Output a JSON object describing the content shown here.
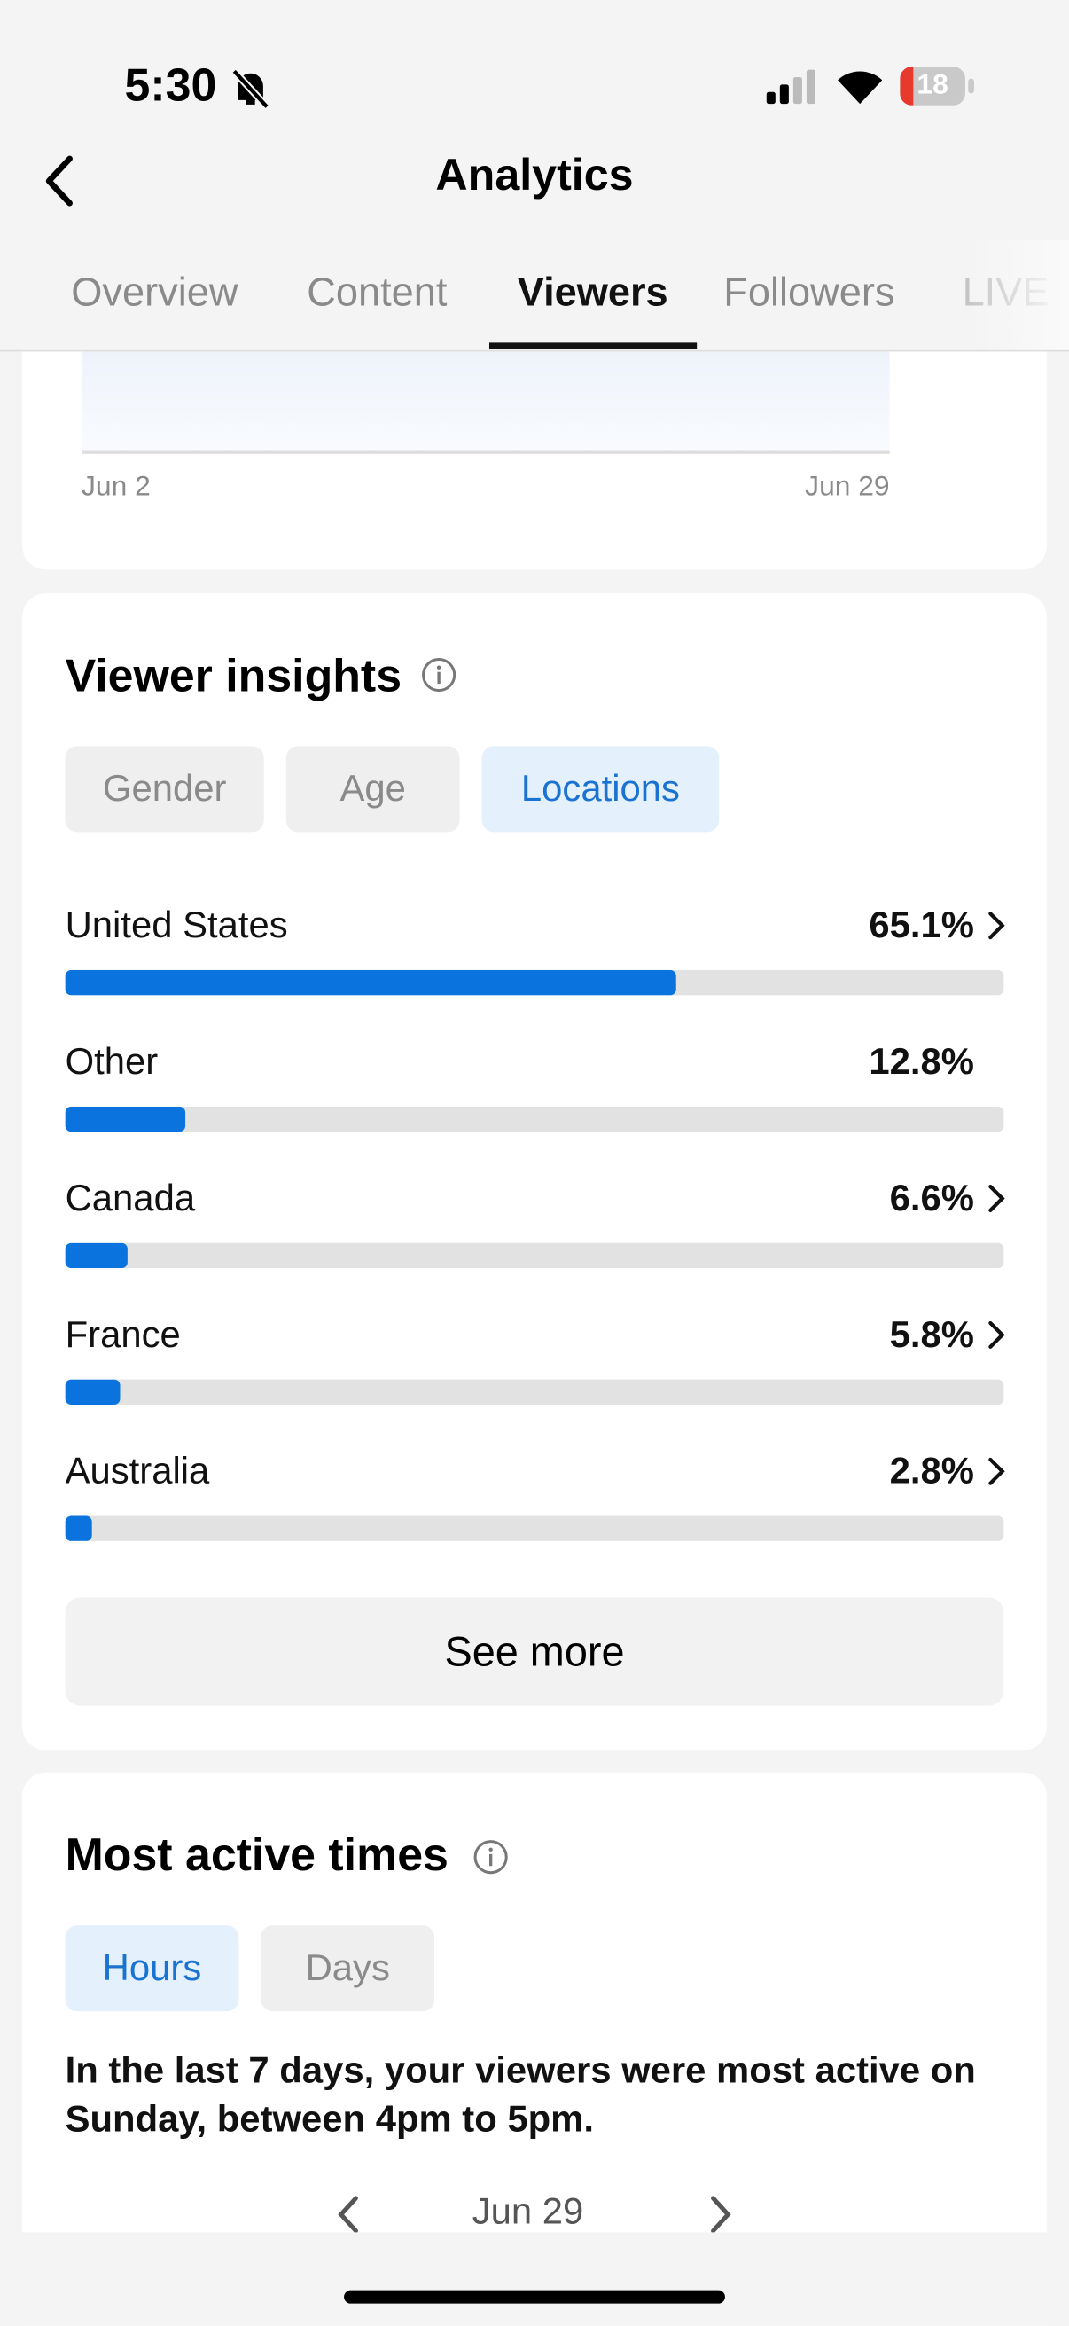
{
  "status_bar": {
    "time": "5:30",
    "battery": "18"
  },
  "header": {
    "title": "Analytics"
  },
  "tabs": [
    {
      "label": "Overview",
      "active": false
    },
    {
      "label": "Content",
      "active": false
    },
    {
      "label": "Viewers",
      "active": true
    },
    {
      "label": "Followers",
      "active": false
    },
    {
      "label": "LIVE",
      "active": false
    }
  ],
  "chart": {
    "x_labels": [
      "Jun 2",
      "Jun 29"
    ]
  },
  "viewer_insights": {
    "title": "Viewer insights",
    "filters": [
      {
        "label": "Gender",
        "active": false
      },
      {
        "label": "Age",
        "active": false
      },
      {
        "label": "Locations",
        "active": true
      }
    ],
    "xlim": [
      0,
      100
    ],
    "locations": [
      {
        "name": "United States",
        "value": 65.1,
        "label": "65.1%",
        "link": true
      },
      {
        "name": "Other",
        "value": 12.8,
        "label": "12.8%",
        "link": false
      },
      {
        "name": "Canada",
        "value": 6.6,
        "label": "6.6%",
        "link": true
      },
      {
        "name": "France",
        "value": 5.8,
        "label": "5.8%",
        "link": true
      },
      {
        "name": "Australia",
        "value": 2.8,
        "label": "2.8%",
        "link": true
      }
    ],
    "see_more": "See more"
  },
  "most_active_times": {
    "title": "Most active times",
    "filters": [
      {
        "label": "Hours",
        "active": true
      },
      {
        "label": "Days",
        "active": false
      }
    ],
    "summary": "In the last 7 days, your viewers were most active on Sunday, between 4pm to 5pm.",
    "date_nav": "Jun 29"
  }
}
